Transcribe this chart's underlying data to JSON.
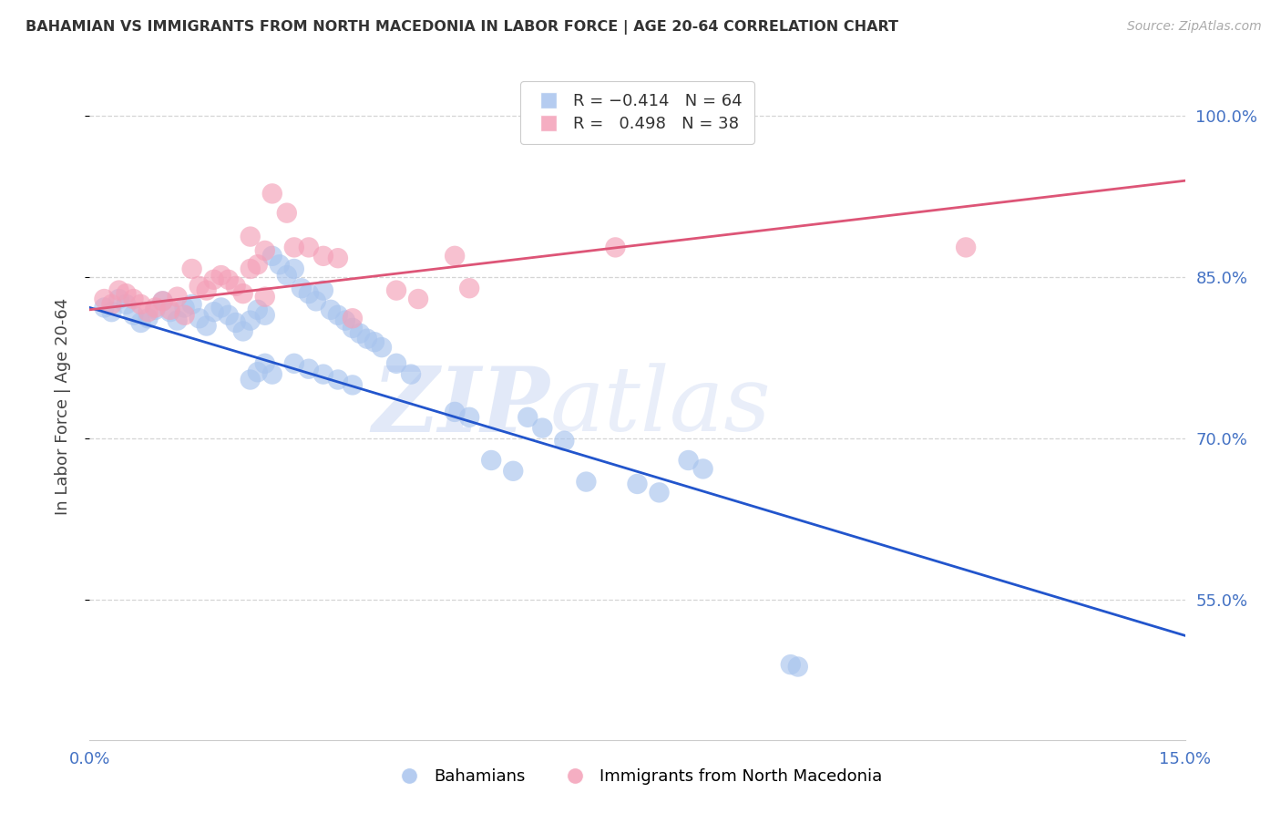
{
  "title": "BAHAMIAN VS IMMIGRANTS FROM NORTH MACEDONIA IN LABOR FORCE | AGE 20-64 CORRELATION CHART",
  "source": "Source: ZipAtlas.com",
  "ylabel": "In Labor Force | Age 20-64",
  "xlim": [
    0.0,
    0.15
  ],
  "ylim": [
    0.42,
    1.04
  ],
  "yticks": [
    0.55,
    0.7,
    0.85,
    1.0
  ],
  "ytick_labels": [
    "55.0%",
    "70.0%",
    "85.0%",
    "100.0%"
  ],
  "xtick_positions": [
    0.0,
    0.15
  ],
  "xtick_labels": [
    "0.0%",
    "15.0%"
  ],
  "legend_blue_r": "R = -0.414",
  "legend_blue_n": "N = 64",
  "legend_pink_r": "R =  0.498",
  "legend_pink_n": "N = 38",
  "legend_blue_label": "Bahamians",
  "legend_pink_label": "Immigrants from North Macedonia",
  "blue_color": "#a8c4ee",
  "pink_color": "#f4a0b8",
  "trendline_blue_color": "#2255cc",
  "trendline_pink_color": "#dd5577",
  "watermark_zip": "ZIP",
  "watermark_atlas": "atlas",
  "blue_trendline_x": [
    0.0,
    0.15
  ],
  "blue_trendline_y": [
    0.822,
    0.517
  ],
  "pink_trendline_x": [
    0.0,
    0.15
  ],
  "pink_trendline_y": [
    0.82,
    0.94
  ],
  "blue_x": [
    0.002,
    0.003,
    0.004,
    0.005,
    0.006,
    0.007,
    0.008,
    0.009,
    0.01,
    0.011,
    0.012,
    0.013,
    0.014,
    0.015,
    0.016,
    0.017,
    0.018,
    0.019,
    0.02,
    0.021,
    0.022,
    0.023,
    0.024,
    0.025,
    0.026,
    0.027,
    0.028,
    0.029,
    0.03,
    0.031,
    0.032,
    0.033,
    0.034,
    0.035,
    0.036,
    0.037,
    0.038,
    0.039,
    0.04,
    0.022,
    0.023,
    0.024,
    0.025,
    0.028,
    0.03,
    0.032,
    0.034,
    0.036,
    0.042,
    0.044,
    0.05,
    0.052,
    0.055,
    0.058,
    0.06,
    0.062,
    0.065,
    0.068,
    0.075,
    0.078,
    0.082,
    0.084,
    0.096,
    0.097
  ],
  "blue_y": [
    0.822,
    0.818,
    0.83,
    0.825,
    0.815,
    0.808,
    0.812,
    0.82,
    0.828,
    0.818,
    0.81,
    0.822,
    0.825,
    0.812,
    0.805,
    0.818,
    0.822,
    0.815,
    0.808,
    0.8,
    0.81,
    0.82,
    0.815,
    0.87,
    0.862,
    0.852,
    0.858,
    0.84,
    0.835,
    0.828,
    0.838,
    0.82,
    0.815,
    0.81,
    0.803,
    0.798,
    0.793,
    0.79,
    0.785,
    0.755,
    0.762,
    0.77,
    0.76,
    0.77,
    0.765,
    0.76,
    0.755,
    0.75,
    0.77,
    0.76,
    0.725,
    0.72,
    0.68,
    0.67,
    0.72,
    0.71,
    0.698,
    0.66,
    0.658,
    0.65,
    0.68,
    0.672,
    0.49,
    0.488
  ],
  "pink_x": [
    0.002,
    0.003,
    0.004,
    0.005,
    0.006,
    0.007,
    0.008,
    0.009,
    0.01,
    0.011,
    0.012,
    0.013,
    0.014,
    0.015,
    0.016,
    0.017,
    0.018,
    0.019,
    0.02,
    0.021,
    0.022,
    0.023,
    0.024,
    0.025,
    0.028,
    0.03,
    0.032,
    0.034,
    0.036,
    0.022,
    0.024,
    0.027,
    0.042,
    0.045,
    0.05,
    0.052,
    0.072,
    0.12
  ],
  "pink_y": [
    0.83,
    0.825,
    0.838,
    0.835,
    0.83,
    0.825,
    0.818,
    0.822,
    0.828,
    0.82,
    0.832,
    0.815,
    0.858,
    0.842,
    0.838,
    0.848,
    0.852,
    0.848,
    0.842,
    0.835,
    0.858,
    0.862,
    0.832,
    0.928,
    0.878,
    0.878,
    0.87,
    0.868,
    0.812,
    0.888,
    0.875,
    0.91,
    0.838,
    0.83,
    0.87,
    0.84,
    0.878,
    0.878
  ]
}
